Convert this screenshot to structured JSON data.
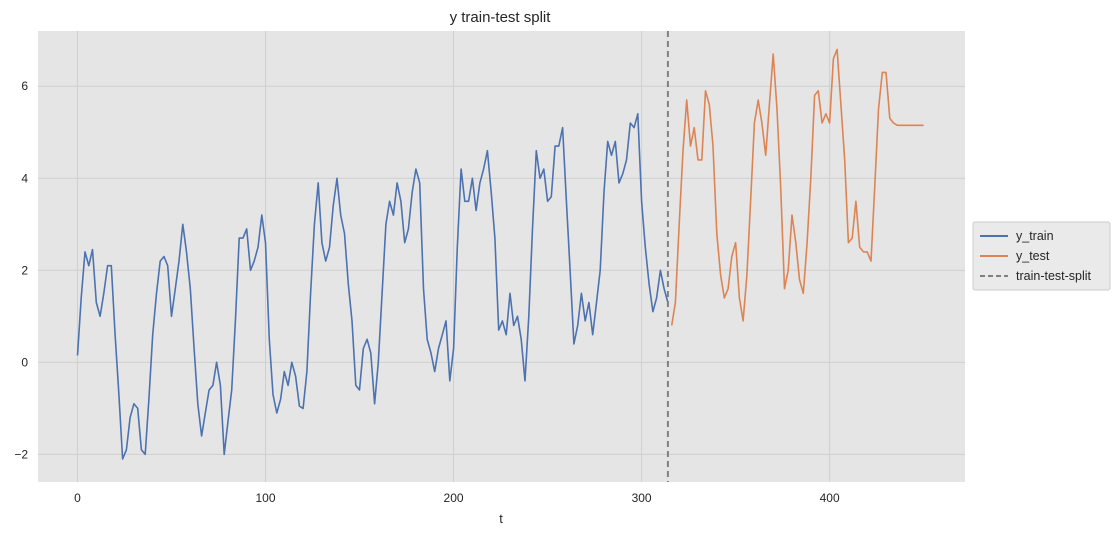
{
  "chart_data": {
    "type": "line",
    "title": "y train-test split",
    "xlabel": "t",
    "ylabel": "",
    "xlim": [
      -21,
      472
    ],
    "ylim": [
      -2.6,
      7.2
    ],
    "xticks": [
      0,
      100,
      200,
      300,
      400
    ],
    "yticks": [
      -2,
      0,
      2,
      4,
      6
    ],
    "grid": true,
    "legend_position": "outside-right",
    "series": [
      {
        "name": "y_train",
        "color": "#4c72b0",
        "x": [
          0,
          2,
          4,
          6,
          8,
          10,
          12,
          14,
          16,
          18,
          20,
          22,
          24,
          26,
          28,
          30,
          32,
          34,
          36,
          38,
          40,
          42,
          44,
          46,
          48,
          50,
          52,
          54,
          56,
          58,
          60,
          62,
          64,
          66,
          68,
          70,
          72,
          74,
          76,
          78,
          80,
          82,
          84,
          86,
          88,
          90,
          92,
          94,
          96,
          98,
          100,
          102,
          104,
          106,
          108,
          110,
          112,
          114,
          116,
          118,
          120,
          122,
          124,
          126,
          128,
          130,
          132,
          134,
          136,
          138,
          140,
          142,
          144,
          146,
          148,
          150,
          152,
          154,
          156,
          158,
          160,
          162,
          164,
          166,
          168,
          170,
          172,
          174,
          176,
          178,
          180,
          182,
          184,
          186,
          188,
          190,
          192,
          194,
          196,
          198,
          200,
          202,
          204,
          206,
          208,
          210,
          212,
          214,
          216,
          218,
          220,
          222,
          224,
          226,
          228,
          230,
          232,
          234,
          236,
          238,
          240,
          242,
          244,
          246,
          248,
          250,
          252,
          254,
          256,
          258,
          260,
          262,
          264,
          266,
          268,
          270,
          272,
          274,
          276,
          278,
          280,
          282,
          284,
          286,
          288,
          290,
          292,
          294,
          296,
          298,
          300,
          302,
          304,
          306,
          308,
          310,
          312,
          314
        ],
        "y": [
          0.15,
          1.4,
          2.4,
          2.1,
          2.45,
          1.3,
          1.0,
          1.5,
          2.1,
          2.1,
          0.6,
          -0.7,
          -2.1,
          -1.9,
          -1.2,
          -0.9,
          -1.0,
          -1.9,
          -2.0,
          -0.8,
          0.6,
          1.5,
          2.2,
          2.3,
          2.1,
          1.0,
          1.6,
          2.2,
          3.0,
          2.4,
          1.6,
          0.3,
          -0.9,
          -1.6,
          -1.1,
          -0.6,
          -0.5,
          0.0,
          -0.5,
          -2.0,
          -1.3,
          -0.6,
          0.9,
          2.7,
          2.7,
          2.9,
          2.0,
          2.2,
          2.5,
          3.2,
          2.6,
          0.5,
          -0.7,
          -1.1,
          -0.8,
          -0.2,
          -0.5,
          0.0,
          -0.3,
          -0.95,
          -1.0,
          -0.2,
          1.5,
          3.0,
          3.9,
          2.6,
          2.2,
          2.5,
          3.4,
          4.0,
          3.2,
          2.8,
          1.7,
          0.9,
          -0.5,
          -0.6,
          0.3,
          0.5,
          0.2,
          -0.9,
          0.0,
          1.5,
          3.0,
          3.5,
          3.2,
          3.9,
          3.5,
          2.6,
          2.9,
          3.7,
          4.2,
          3.9,
          1.6,
          0.5,
          0.2,
          -0.2,
          0.3,
          0.6,
          0.9,
          -0.4,
          0.3,
          2.5,
          4.2,
          3.5,
          3.5,
          4.0,
          3.3,
          3.9,
          4.2,
          4.6,
          3.7,
          2.7,
          0.7,
          0.9,
          0.6,
          1.5,
          0.8,
          1.0,
          0.5,
          -0.4,
          1.0,
          2.9,
          4.6,
          4.0,
          4.2,
          3.5,
          3.6,
          4.7,
          4.7,
          5.1,
          3.5,
          2.0,
          0.4,
          0.8,
          1.5,
          0.9,
          1.3,
          0.6,
          1.3,
          2.0,
          3.7,
          4.8,
          4.5,
          4.8,
          3.9,
          4.1,
          4.4,
          5.2,
          5.1,
          5.4,
          3.5,
          2.5,
          1.7,
          1.1,
          1.4,
          2.0,
          1.6,
          1.3
        ],
        "label": "y_train"
      },
      {
        "name": "y_test",
        "color": "#dd8452",
        "x": [
          316,
          318,
          320,
          322,
          324,
          326,
          328,
          330,
          332,
          334,
          336,
          338,
          340,
          342,
          344,
          346,
          348,
          350,
          352,
          354,
          356,
          358,
          360,
          362,
          364,
          366,
          368,
          370,
          372,
          374,
          376,
          378,
          380,
          382,
          384,
          386,
          388,
          390,
          392,
          394,
          396,
          398,
          400,
          402,
          404,
          406,
          408,
          410,
          412,
          414,
          416,
          418,
          420,
          422,
          424,
          426,
          428,
          430,
          432,
          434,
          436,
          438,
          440,
          442,
          444,
          446,
          448,
          450
        ],
        "y": [
          0.8,
          1.3,
          3.0,
          4.6,
          5.7,
          4.7,
          5.1,
          4.4,
          4.4,
          5.9,
          5.6,
          4.7,
          2.8,
          1.9,
          1.4,
          1.6,
          2.3,
          2.6,
          1.4,
          0.9,
          1.9,
          3.5,
          5.2,
          5.7,
          5.2,
          4.5,
          5.6,
          6.7,
          5.5,
          3.8,
          1.6,
          2.0,
          3.2,
          2.6,
          1.8,
          1.5,
          2.6,
          4.0,
          5.8,
          5.9,
          5.2,
          5.4,
          5.2,
          6.6,
          6.8,
          5.6,
          4.4,
          2.6,
          2.7,
          3.5,
          2.5,
          2.4,
          2.4,
          2.2,
          3.8,
          5.5,
          6.3,
          6.3,
          5.3,
          5.2,
          5.15,
          5.15,
          5.15,
          5.15,
          5.15,
          5.15,
          5.15,
          5.15
        ],
        "label": "y_test"
      }
    ],
    "vline": {
      "x": 314,
      "color": "#808080",
      "style": "dashed",
      "label": "train-test-split"
    },
    "legend": [
      "y_train",
      "y_test",
      "train-test-split"
    ]
  }
}
